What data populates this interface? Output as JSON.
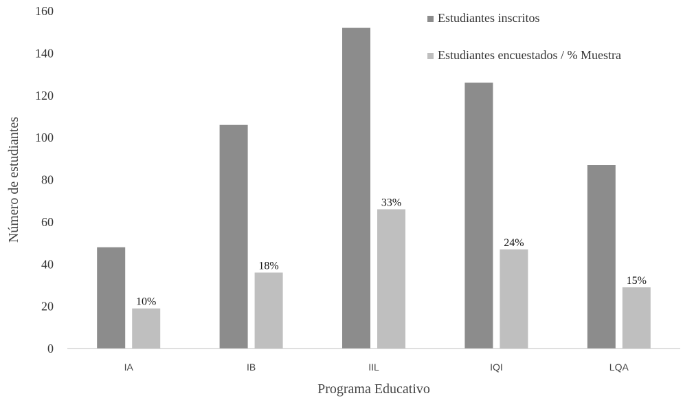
{
  "chart_data": {
    "type": "bar",
    "categories": [
      "IA",
      "IB",
      "IIL",
      "IQI",
      "LQA"
    ],
    "series": [
      {
        "name": "Estudiantes inscritos",
        "color": "#8c8c8c",
        "values": [
          48,
          106,
          152,
          126,
          87
        ]
      },
      {
        "name": "Estudiantes encuestados / % Muestra",
        "color": "#bfbfbf",
        "values": [
          19,
          36,
          66,
          47,
          29
        ],
        "labels": [
          "10%",
          "18%",
          "33%",
          "24%",
          "15%"
        ]
      }
    ],
    "title": "",
    "xlabel": "Programa Educativo",
    "ylabel": "Número de estudiantes",
    "ylim": [
      0,
      160
    ],
    "yticks": [
      0,
      20,
      40,
      60,
      80,
      100,
      120,
      140,
      160
    ],
    "grid": false,
    "legend_position": "top-right"
  }
}
